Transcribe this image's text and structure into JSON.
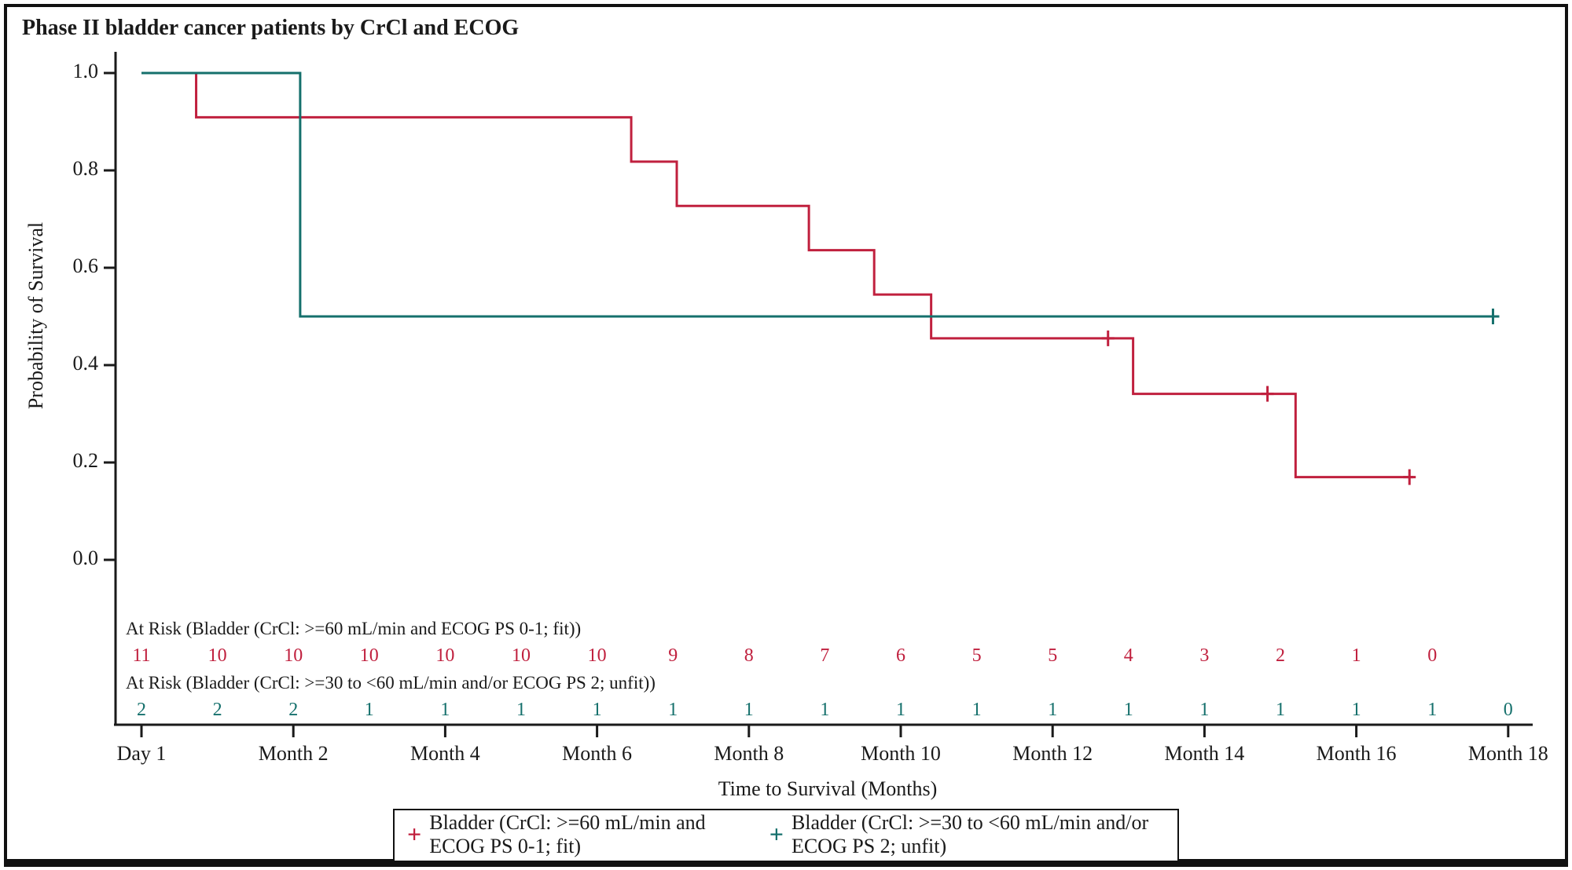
{
  "title": "Phase II bladder cancer patients by CrCl and ECOG",
  "chart_data": {
    "type": "line",
    "subtype": "kaplan-meier-step",
    "title": "Phase II bladder cancer patients by CrCl and ECOG",
    "xlabel": "Time to Survival (Months)",
    "ylabel": "Probability of Survival",
    "xlim_months": [
      0,
      18
    ],
    "ylim": [
      0.0,
      1.0
    ],
    "grid": "off",
    "legend_position": "bottom",
    "x_ticks": [
      {
        "month": 0,
        "label": "Day 1"
      },
      {
        "month": 2,
        "label": "Month 2"
      },
      {
        "month": 4,
        "label": "Month 4"
      },
      {
        "month": 6,
        "label": "Month 6"
      },
      {
        "month": 8,
        "label": "Month 8"
      },
      {
        "month": 10,
        "label": "Month 10"
      },
      {
        "month": 12,
        "label": "Month 12"
      },
      {
        "month": 14,
        "label": "Month 14"
      },
      {
        "month": 16,
        "label": "Month 16"
      },
      {
        "month": 18,
        "label": "Month 18"
      }
    ],
    "y_ticks": [
      {
        "value": 1.0,
        "label": "1.0"
      },
      {
        "value": 0.8,
        "label": "0.8"
      },
      {
        "value": 0.6,
        "label": "0.6"
      },
      {
        "value": 0.4,
        "label": "0.4"
      },
      {
        "value": 0.2,
        "label": "0.2"
      },
      {
        "value": 0.0,
        "label": "0.0"
      }
    ],
    "series": [
      {
        "name": "Bladder (CrCl: >=60 mL/min and ECOG PS 0-1; fit)",
        "color": "#C0203E",
        "marker_glyph": "+",
        "steps": [
          [
            0,
            1.0
          ],
          [
            0.72,
            0.909
          ],
          [
            6.45,
            0.818
          ],
          [
            7.05,
            0.727
          ],
          [
            8.79,
            0.636
          ],
          [
            9.65,
            0.545
          ],
          [
            10.4,
            0.455
          ],
          [
            13.06,
            0.341
          ],
          [
            15.2,
            0.17
          ]
        ],
        "end_month": 16.75,
        "censors": [
          [
            12.73,
            0.455
          ],
          [
            14.83,
            0.341
          ],
          [
            16.7,
            0.17
          ]
        ]
      },
      {
        "name": "Bladder (CrCl: >=30 to <60 mL/min and/or ECOG PS 2; unfit)",
        "color": "#15706C",
        "marker_glyph": "+",
        "steps": [
          [
            0,
            1.0
          ],
          [
            2.09,
            0.5
          ]
        ],
        "end_month": 17.82,
        "censors": [
          [
            17.8,
            0.5
          ]
        ]
      }
    ],
    "at_risk": [
      {
        "label": "At Risk (Bladder (CrCl: >=60 mL/min and ECOG PS 0-1; fit))",
        "color": "#C0203E",
        "months": [
          0,
          1,
          2,
          3,
          4,
          5,
          6,
          7,
          8,
          9,
          10,
          11,
          12,
          13,
          14,
          15,
          16,
          17
        ],
        "values": [
          11,
          10,
          10,
          10,
          10,
          10,
          10,
          9,
          8,
          7,
          6,
          5,
          5,
          4,
          3,
          2,
          1,
          0
        ]
      },
      {
        "label": "At Risk (Bladder (CrCl: >=30 to <60 mL/min and/or ECOG PS 2; unfit))",
        "color": "#15706C",
        "months": [
          0,
          1,
          2,
          3,
          4,
          5,
          6,
          7,
          8,
          9,
          10,
          11,
          12,
          13,
          14,
          15,
          16,
          17,
          18
        ],
        "values": [
          2,
          2,
          2,
          1,
          1,
          1,
          1,
          1,
          1,
          1,
          1,
          1,
          1,
          1,
          1,
          1,
          1,
          1,
          0
        ]
      }
    ]
  }
}
